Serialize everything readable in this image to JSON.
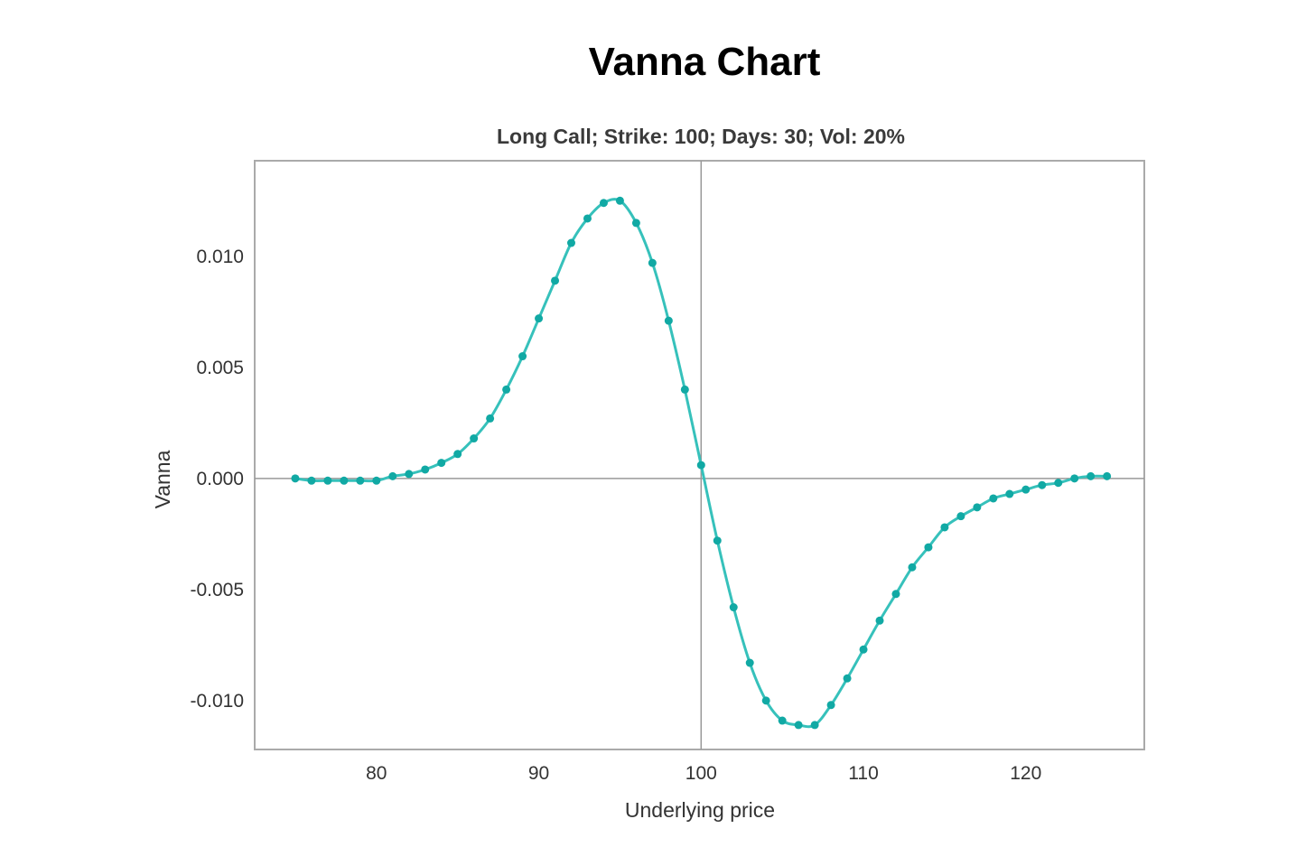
{
  "chart_data": {
    "type": "line",
    "title": "Vanna Chart",
    "subtitle": "Long Call; Strike: 100; Days: 30; Vol: 20%",
    "xlabel": "Underlying price",
    "ylabel": "Vanna",
    "xlim": [
      72.5,
      127.3
    ],
    "ylim": [
      -0.0122,
      0.0143
    ],
    "xticks": [
      80,
      90,
      100,
      110,
      120
    ],
    "xtick_labels": [
      "80",
      "90",
      "100",
      "110",
      "120"
    ],
    "yticks": [
      0.01,
      0.005,
      0.0,
      -0.005,
      -0.01
    ],
    "ytick_labels": [
      "0.010",
      "0.005",
      "0.000",
      "-0.005",
      "-0.010"
    ],
    "reference_lines": {
      "x": 100,
      "y": 0
    },
    "grid": false,
    "legend": "none",
    "colors": {
      "line": "#36c1bb",
      "marker": "#11a9a4",
      "frame": "#aaaaaa",
      "reference": "#999999"
    },
    "series": [
      {
        "x": [
          75,
          76,
          77,
          78,
          79,
          80,
          81,
          82,
          83,
          84,
          85,
          86,
          87,
          88,
          89,
          90,
          91,
          92,
          93,
          94,
          95,
          96,
          97,
          98,
          99,
          100,
          101,
          102,
          103,
          104,
          105,
          106,
          107,
          108,
          109,
          110,
          111,
          112,
          113,
          114,
          115,
          116,
          117,
          118,
          119,
          120,
          121,
          122,
          123,
          124,
          125
        ],
        "values": [
          0.0,
          -0.0001,
          -0.0001,
          -0.0001,
          -0.0001,
          -0.0001,
          0.0001,
          0.0002,
          0.0004,
          0.0007,
          0.0011,
          0.0018,
          0.0027,
          0.004,
          0.0055,
          0.0072,
          0.0089,
          0.0106,
          0.0117,
          0.0124,
          0.0125,
          0.0115,
          0.0097,
          0.0071,
          0.004,
          0.0006,
          -0.0028,
          -0.0058,
          -0.0083,
          -0.01,
          -0.0109,
          -0.0111,
          -0.0111,
          -0.0102,
          -0.009,
          -0.0077,
          -0.0064,
          -0.0052,
          -0.004,
          -0.0031,
          -0.0022,
          -0.0017,
          -0.0013,
          -0.0009,
          -0.0007,
          -0.0005,
          -0.0003,
          -0.0002,
          0.0,
          0.0001,
          0.0001
        ]
      }
    ]
  }
}
